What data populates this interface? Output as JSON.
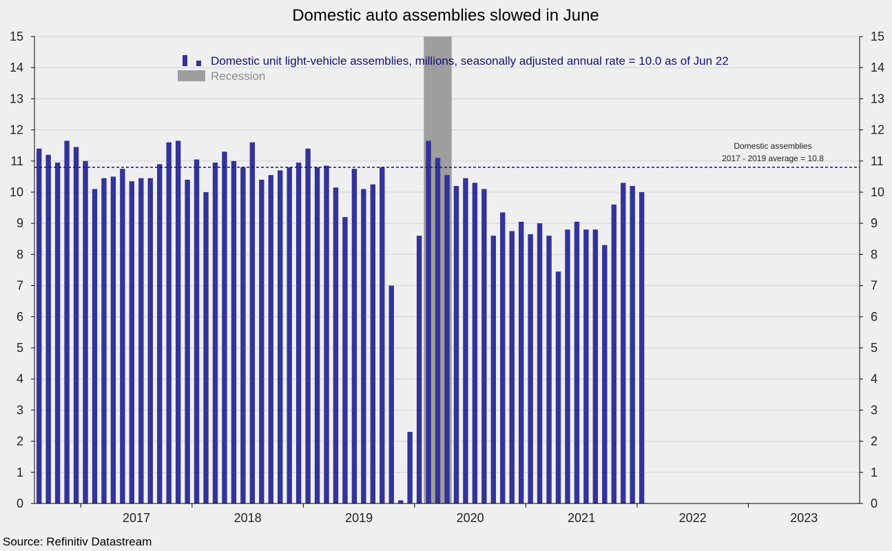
{
  "chart_data": {
    "type": "bar",
    "title": "Domestic auto assemblies slowed in June",
    "ylim": [
      0,
      15
    ],
    "yticks": [
      0,
      1,
      2,
      3,
      4,
      5,
      6,
      7,
      8,
      9,
      10,
      11,
      12,
      13,
      14,
      15
    ],
    "x_start": "2016-08",
    "x_end": "2023-12",
    "year_labels": [
      "2017",
      "2018",
      "2019",
      "2020",
      "2021",
      "2022",
      "2023"
    ],
    "series": [
      {
        "name": "Domestic unit light-vehicle assemblies, millions, seasonally adjusted annual rate = 10.0 as of Jun 22",
        "color": "#33339a",
        "start": "2016-08",
        "values": [
          11.4,
          11.2,
          10.95,
          11.65,
          11.45,
          11.0,
          10.1,
          10.45,
          10.5,
          10.75,
          10.35,
          10.45,
          10.45,
          10.9,
          11.6,
          11.65,
          10.4,
          11.05,
          10.0,
          10.95,
          11.3,
          11.0,
          10.8,
          11.6,
          10.4,
          10.55,
          10.7,
          10.8,
          10.95,
          11.4,
          10.8,
          10.85,
          10.15,
          9.2,
          10.75,
          10.1,
          10.25,
          10.8,
          7.0,
          0.1,
          2.3,
          8.6,
          11.65,
          11.1,
          10.55,
          10.2,
          10.45,
          10.3,
          10.1,
          8.6,
          9.35,
          8.75,
          9.05,
          8.65,
          9.0,
          8.6,
          7.45,
          8.8,
          9.05,
          8.8,
          8.8,
          8.3,
          9.6,
          10.3,
          10.2,
          10.0
        ]
      }
    ],
    "recession": {
      "label": "Recession",
      "start": "2020-02",
      "end": "2020-04",
      "color": "#9e9e9e"
    },
    "reference_line": {
      "value": 10.8,
      "color": "#10107a",
      "label_line1": "Domestic assemblies",
      "label_line2": "2017 - 2019 average = 10.8"
    },
    "source": "Source: Refinitiv Datastream"
  }
}
